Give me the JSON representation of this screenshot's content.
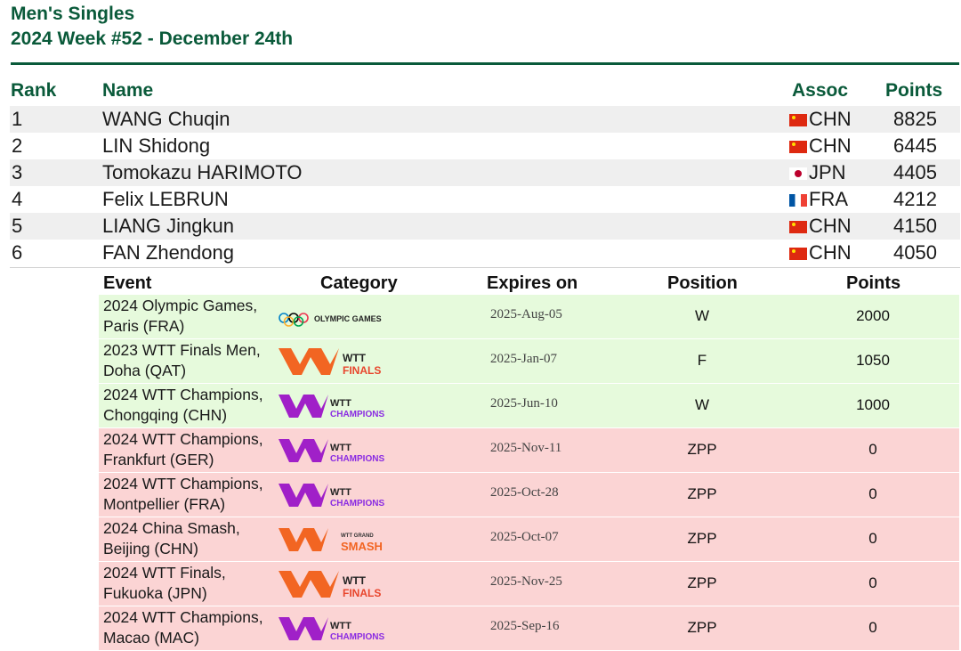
{
  "header": {
    "line1": "Men's Singles",
    "line2": "2024 Week #52 - December 24th"
  },
  "ranking_columns": {
    "rank": "Rank",
    "name": "Name",
    "assoc": "Assoc",
    "points": "Points"
  },
  "players": [
    {
      "rank": "1",
      "name": "WANG Chuqin",
      "flag": "cn-flag-icon",
      "assoc": "CHN",
      "points": "8825"
    },
    {
      "rank": "2",
      "name": "LIN Shidong",
      "flag": "cn-flag-icon",
      "assoc": "CHN",
      "points": "6445"
    },
    {
      "rank": "3",
      "name": "Tomokazu HARIMOTO",
      "flag": "jp-flag-icon",
      "assoc": "JPN",
      "points": "4405"
    },
    {
      "rank": "4",
      "name": "Felix LEBRUN",
      "flag": "fr-flag-icon",
      "assoc": "FRA",
      "points": "4212"
    },
    {
      "rank": "5",
      "name": "LIANG Jingkun",
      "flag": "cn-flag-icon",
      "assoc": "CHN",
      "points": "4150"
    },
    {
      "rank": "6",
      "name": "FAN Zhendong",
      "flag": "cn-flag-icon",
      "assoc": "CHN",
      "points": "4050"
    }
  ],
  "event_columns": {
    "event": "Event",
    "category": "Category",
    "expires": "Expires on",
    "position": "Position",
    "points": "Points"
  },
  "events": [
    {
      "event_line1": "2024 Olympic Games,",
      "event_line2": "Paris (FRA)",
      "category_logo": "olympic-games-logo",
      "logo_text": "OLYMPIC GAMES",
      "expires": "2025-Aug-05",
      "position": "W",
      "points": "2000",
      "status": "counted"
    },
    {
      "event_line1": "2023 WTT Finals Men,",
      "event_line2": "Doha (QAT)",
      "category_logo": "wtt-finals-logo",
      "logo_text": "WTT FINALS",
      "expires": "2025-Jan-07",
      "position": "F",
      "points": "1050",
      "status": "counted"
    },
    {
      "event_line1": "2024 WTT Champions,",
      "event_line2": "Chongqing (CHN)",
      "category_logo": "wtt-champions-logo",
      "logo_text": "WTT CHAMPIONS",
      "expires": "2025-Jun-10",
      "position": "W",
      "points": "1000",
      "status": "counted"
    },
    {
      "event_line1": "2024 WTT Champions,",
      "event_line2": "Frankfurt (GER)",
      "category_logo": "wtt-champions-logo",
      "logo_text": "WTT CHAMPIONS",
      "expires": "2025-Nov-11",
      "position": "ZPP",
      "points": "0",
      "status": "not-counted"
    },
    {
      "event_line1": "2024 WTT Champions,",
      "event_line2": "Montpellier (FRA)",
      "category_logo": "wtt-champions-logo",
      "logo_text": "WTT CHAMPIONS",
      "expires": "2025-Oct-28",
      "position": "ZPP",
      "points": "0",
      "status": "not-counted"
    },
    {
      "event_line1": "2024 China Smash,",
      "event_line2": "Beijing (CHN)",
      "category_logo": "wtt-grand-smash-logo",
      "logo_text": "WTT GRAND SMASH",
      "expires": "2025-Oct-07",
      "position": "ZPP",
      "points": "0",
      "status": "not-counted"
    },
    {
      "event_line1": "2024 WTT Finals,",
      "event_line2": "Fukuoka (JPN)",
      "category_logo": "wtt-finals-logo",
      "logo_text": "WTT FINALS",
      "expires": "2025-Nov-25",
      "position": "ZPP",
      "points": "0",
      "status": "not-counted"
    },
    {
      "event_line1": "2024 WTT Champions,",
      "event_line2": "Macao (MAC)",
      "category_logo": "wtt-champions-logo",
      "logo_text": "WTT CHAMPIONS",
      "expires": "2025-Sep-16",
      "position": "ZPP",
      "points": "0",
      "status": "not-counted"
    }
  ],
  "colors": {
    "heading_green": "#0a5a3a",
    "counted_row": "#e6fadc",
    "not_counted_row": "#fbd4d4",
    "alt_row": "#efefef"
  }
}
